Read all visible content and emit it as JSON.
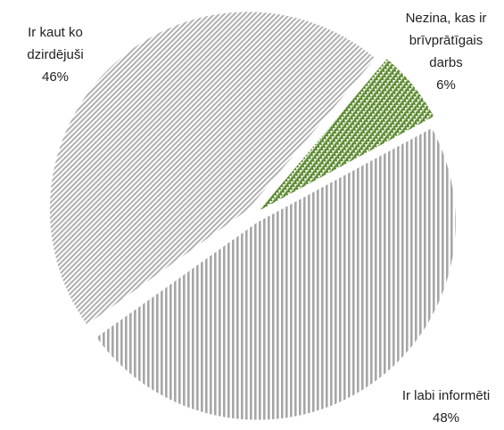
{
  "chart_data": {
    "type": "pie",
    "categories": [
      "Nezina, kas ir brīvprātīgais darbs",
      "Ir labi informēti",
      "Ir kaut ko dzirdējuši"
    ],
    "values": [
      6,
      48,
      46
    ],
    "value_labels": [
      "6%",
      "48%",
      "46%"
    ],
    "colors": [
      "#5b8a2f",
      "#a6a6a6",
      "#b0b0b0"
    ]
  }
}
